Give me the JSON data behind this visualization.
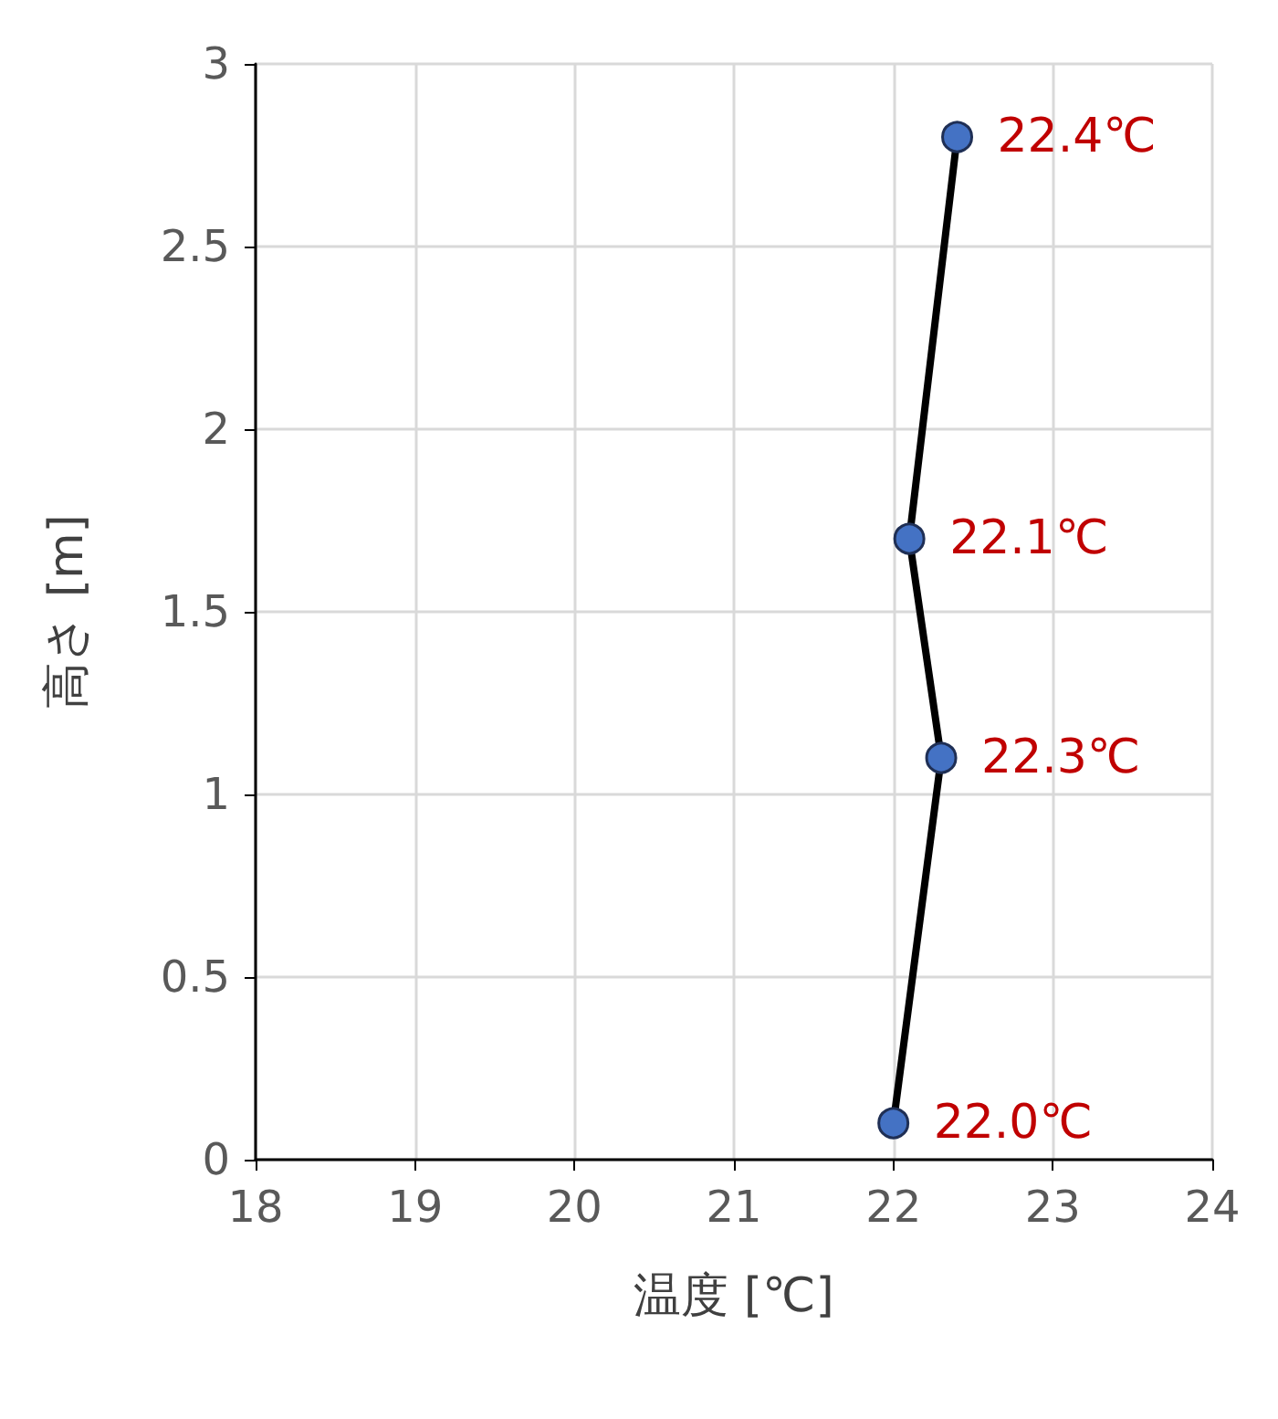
{
  "chart_data": {
    "type": "line",
    "xlabel": "温度 [℃]",
    "ylabel": "高さ [m]",
    "x": [
      22.0,
      22.3,
      22.1,
      22.4
    ],
    "series": [
      {
        "color": "#4472c4",
        "values": [
          0.1,
          1.1,
          1.7,
          2.8
        ]
      }
    ],
    "annotations": [
      {
        "text": "22.0℃",
        "x": 22.0,
        "y": 0.1
      },
      {
        "text": "22.3℃",
        "x": 22.3,
        "y": 1.1
      },
      {
        "text": "22.1℃",
        "x": 22.1,
        "y": 1.7
      },
      {
        "text": "22.4℃",
        "x": 22.4,
        "y": 2.8
      }
    ],
    "xlim": [
      18,
      24
    ],
    "xticks": [
      18,
      19,
      20,
      21,
      22,
      23,
      24
    ],
    "ylim": [
      0,
      3
    ],
    "yticks": [
      0,
      0.5,
      1,
      1.5,
      2,
      2.5,
      3
    ],
    "grid": true,
    "marker": "circle",
    "line_style": "solid"
  }
}
